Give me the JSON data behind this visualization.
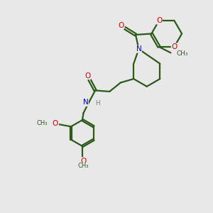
{
  "bg_color": "#e8e8e8",
  "bond_color": "#2d5a1b",
  "o_color": "#dd0000",
  "n_color": "#0000cc",
  "h_color": "#808080",
  "line_width": 1.6,
  "fig_width": 3.0,
  "fig_height": 3.0,
  "dpi": 100,
  "xlim": [
    0,
    10
  ],
  "ylim": [
    0,
    10
  ]
}
